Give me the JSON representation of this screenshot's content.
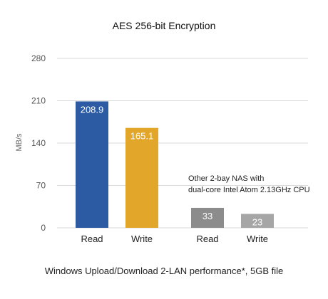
{
  "chart_data": {
    "type": "bar",
    "title": "AES 256-bit Encryption",
    "ylabel": "MB/s",
    "xlabel": "Windows Upload/Download 2-LAN performance*, 5GB file",
    "ylim": [
      0,
      280
    ],
    "yticks": [
      0,
      70,
      140,
      210,
      280
    ],
    "grid": true,
    "bars": [
      {
        "category": "Read",
        "value": 208.9,
        "label": "208.9",
        "color": "#2d5ba3"
      },
      {
        "category": "Write",
        "value": 165.1,
        "label": "165.1",
        "color": "#e2a62a"
      },
      {
        "category": "Read",
        "value": 33,
        "label": "33",
        "color": "#8c8c8c"
      },
      {
        "category": "Write",
        "value": 23,
        "label": "23",
        "color": "#a6a6a6"
      }
    ],
    "annotation": [
      "Other 2-bay NAS with",
      "dual-core Intel Atom 2.13GHz CPU"
    ]
  }
}
